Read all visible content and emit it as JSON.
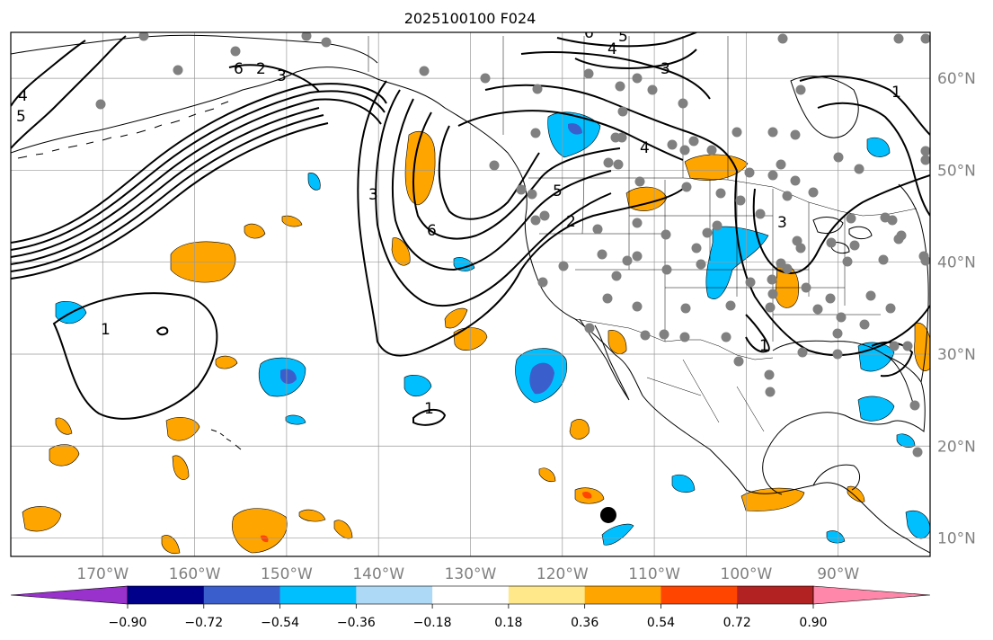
{
  "title": "2025100100 F024",
  "map": {
    "lon_range": [
      -180,
      -80
    ],
    "lat_range": [
      8,
      65
    ],
    "longitude_labels": [
      {
        "lon": -170,
        "text": "170°W"
      },
      {
        "lon": -160,
        "text": "160°W"
      },
      {
        "lon": -150,
        "text": "150°W"
      },
      {
        "lon": -140,
        "text": "140°W"
      },
      {
        "lon": -130,
        "text": "130°W"
      },
      {
        "lon": -120,
        "text": "120°W"
      },
      {
        "lon": -110,
        "text": "110°W"
      },
      {
        "lon": -100,
        "text": "100°W"
      },
      {
        "lon": -90,
        "text": "90°W"
      }
    ],
    "latitude_labels": [
      {
        "lat": 60,
        "text": "60°N"
      },
      {
        "lat": 50,
        "text": "50°N"
      },
      {
        "lat": 40,
        "text": "40°N"
      },
      {
        "lat": 30,
        "text": "30°N"
      },
      {
        "lat": 20,
        "text": "20°N"
      },
      {
        "lat": 10,
        "text": "10°N"
      }
    ],
    "gridlines": true,
    "contour_labels": [
      "1",
      "1",
      "1",
      "1",
      "2",
      "3",
      "3",
      "3",
      "4",
      "4",
      "5",
      "5",
      "6",
      "6",
      "2",
      "3",
      "4",
      "5",
      "6"
    ],
    "marker": {
      "name": "black-dot",
      "lon": -115,
      "lat": 12.5
    }
  },
  "colorbar": {
    "ticks": [
      "−0.90",
      "−0.72",
      "−0.54",
      "−0.36",
      "−0.18",
      "0.18",
      "0.36",
      "0.54",
      "0.72",
      "0.90"
    ],
    "colors": [
      "#9932cc",
      "#00008b",
      "#3a5fcd",
      "#00bfff",
      "#add8f6",
      "#ffffff",
      "#ffe88a",
      "#ffa500",
      "#ff4500",
      "#b22222",
      "#ff88aa"
    ]
  },
  "colors": {
    "ocean_bg": "#ffffff",
    "grid": "#999999",
    "station": "#808080",
    "positive_fill": "#ffa500",
    "negative_fill": "#00bfff"
  }
}
